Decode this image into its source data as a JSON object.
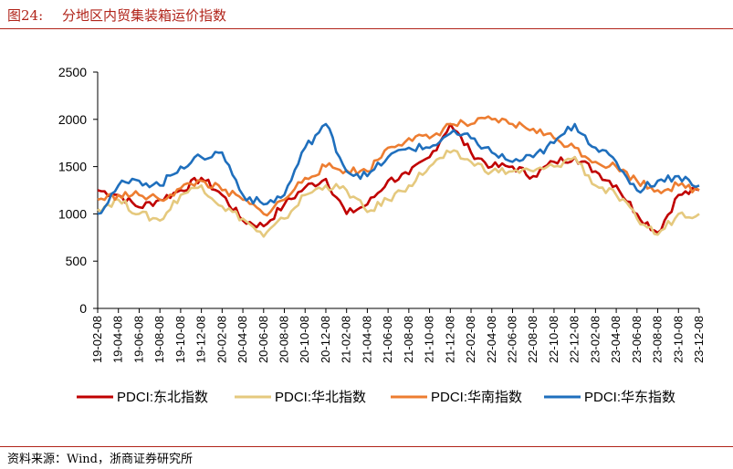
{
  "header": {
    "figure_label": "图24:",
    "title": "分地区内贸集装箱运价指数"
  },
  "footer": {
    "source": "资料来源：Wind，浙商证券研究所"
  },
  "chart_data": {
    "type": "line",
    "title": "分地区内贸集装箱运价指数",
    "xlabel": "",
    "ylabel": "",
    "ylim": [
      0,
      2500
    ],
    "yticks": [
      0,
      500,
      1000,
      1500,
      2000,
      2500
    ],
    "grid": false,
    "legend_position": "bottom",
    "x": [
      "19-02-08",
      "19-04-08",
      "19-06-08",
      "19-08-08",
      "19-10-08",
      "19-12-08",
      "20-02-08",
      "20-04-08",
      "20-06-08",
      "20-08-08",
      "20-10-08",
      "20-12-08",
      "21-02-08",
      "21-04-08",
      "21-06-08",
      "21-08-08",
      "21-10-08",
      "21-12-08",
      "22-02-08",
      "22-04-08",
      "22-06-08",
      "22-08-08",
      "22-10-08",
      "22-12-08",
      "23-02-08",
      "23-04-08",
      "23-06-08",
      "23-08-08",
      "23-10-08",
      "23-12-08"
    ],
    "series": [
      {
        "name": "PDCI:东北指数",
        "color": "#c00000",
        "values": [
          1250,
          1200,
          1070,
          1150,
          1250,
          1380,
          1200,
          930,
          870,
          1100,
          1280,
          1370,
          1000,
          1100,
          1350,
          1420,
          1600,
          1950,
          1650,
          1500,
          1500,
          1400,
          1550,
          1600,
          1450,
          1300,
          1000,
          800,
          1200,
          1250
        ]
      },
      {
        "name": "PDCI:华北指数",
        "color": "#e5c97e",
        "values": [
          1050,
          1150,
          1000,
          930,
          1200,
          1300,
          1080,
          950,
          760,
          950,
          1200,
          1300,
          1250,
          1020,
          1150,
          1300,
          1500,
          1650,
          1550,
          1450,
          1450,
          1450,
          1500,
          1600,
          1300,
          1200,
          950,
          780,
          1000,
          1000
        ]
      },
      {
        "name": "PDCI:华南指数",
        "color": "#ed7d31",
        "values": [
          1150,
          1200,
          1200,
          1150,
          1270,
          1350,
          1250,
          1150,
          1000,
          1150,
          1380,
          1500,
          1460,
          1450,
          1700,
          1800,
          1800,
          1950,
          1950,
          2000,
          1950,
          1900,
          1800,
          1700,
          1550,
          1500,
          1350,
          1250,
          1300,
          1250
        ]
      },
      {
        "name": "PDCI:华东指数",
        "color": "#1f6fbd",
        "values": [
          1000,
          1300,
          1350,
          1300,
          1500,
          1600,
          1650,
          1200,
          1100,
          1200,
          1700,
          1950,
          1450,
          1400,
          1600,
          1700,
          1700,
          1850,
          1800,
          1650,
          1550,
          1600,
          1750,
          1950,
          1700,
          1550,
          1250,
          1350,
          1400,
          1300
        ]
      }
    ]
  }
}
